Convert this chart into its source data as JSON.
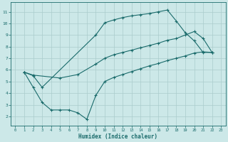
{
  "xlabel": "Humidex (Indice chaleur)",
  "xlim": [
    -0.5,
    23.5
  ],
  "ylim": [
    1.2,
    11.8
  ],
  "xticks": [
    0,
    1,
    2,
    3,
    4,
    5,
    6,
    7,
    8,
    9,
    10,
    11,
    12,
    13,
    14,
    15,
    16,
    17,
    18,
    19,
    20,
    21,
    22,
    23
  ],
  "yticks": [
    2,
    3,
    4,
    5,
    6,
    7,
    8,
    9,
    10,
    11
  ],
  "bg_color": "#cce8e8",
  "line_color": "#1a6b6b",
  "grid_color": "#aacccc",
  "line1_x": [
    1,
    2,
    3,
    9,
    10,
    11,
    12,
    13,
    14,
    15,
    16,
    17,
    18,
    19,
    20,
    21,
    22
  ],
  "line1_y": [
    5.8,
    5.5,
    4.5,
    9.0,
    10.05,
    10.3,
    10.5,
    10.65,
    10.75,
    10.85,
    11.0,
    11.15,
    10.2,
    9.2,
    8.5,
    7.5,
    7.5
  ],
  "line2_x": [
    1,
    2,
    5,
    7,
    9,
    10,
    11,
    12,
    13,
    14,
    15,
    16,
    17,
    18,
    19,
    20,
    21,
    22
  ],
  "line2_y": [
    5.8,
    5.55,
    5.3,
    5.6,
    6.5,
    7.0,
    7.3,
    7.5,
    7.7,
    7.9,
    8.1,
    8.3,
    8.55,
    8.7,
    9.0,
    9.3,
    8.7,
    7.5
  ],
  "line3_x": [
    1,
    2,
    3,
    4,
    5,
    6,
    7,
    8,
    9,
    10,
    11,
    12,
    13,
    14,
    15,
    16,
    17,
    18,
    19,
    20,
    21,
    22
  ],
  "line3_y": [
    5.8,
    4.5,
    3.2,
    2.55,
    2.55,
    2.55,
    2.3,
    1.75,
    3.8,
    5.0,
    5.35,
    5.6,
    5.85,
    6.1,
    6.35,
    6.55,
    6.8,
    7.0,
    7.2,
    7.45,
    7.55,
    7.5
  ]
}
